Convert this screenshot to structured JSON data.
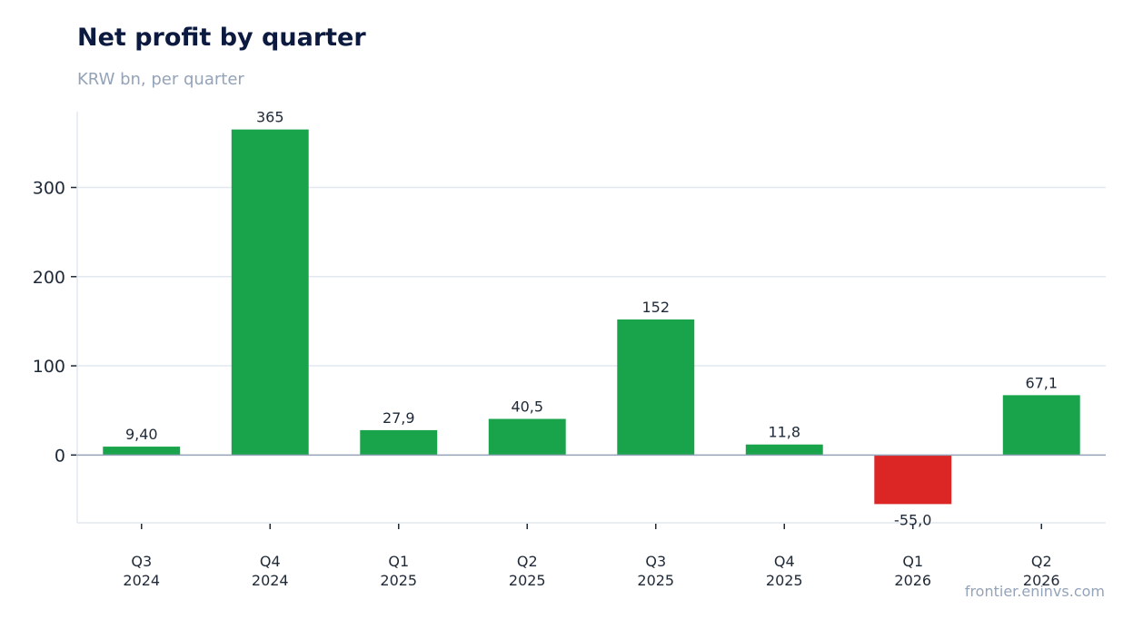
{
  "chart_data": {
    "type": "bar",
    "title": "Net profit by quarter",
    "subtitle": "KRW bn, per quarter",
    "categories": [
      [
        "Q3",
        "2024"
      ],
      [
        "Q4",
        "2024"
      ],
      [
        "Q1",
        "2025"
      ],
      [
        "Q2",
        "2025"
      ],
      [
        "Q3",
        "2025"
      ],
      [
        "Q4",
        "2025"
      ],
      [
        "Q1",
        "2026"
      ],
      [
        "Q2",
        "2026"
      ]
    ],
    "values": [
      9.4,
      365,
      27.9,
      40.5,
      152,
      11.8,
      -55.0,
      67.1
    ],
    "value_labels": [
      "9,40",
      "365",
      "27,9",
      "40,5",
      "152",
      "11,8",
      "-55,0",
      "67,1"
    ],
    "ylim": [
      -76,
      385
    ],
    "yticks": [
      0,
      100,
      200,
      300
    ],
    "ytick_labels": [
      "0",
      "100",
      "200",
      "300"
    ],
    "xlabel": "",
    "ylabel": "",
    "grid": true,
    "positive_color": "#19a34a",
    "negative_color": "#dc2626",
    "source": "frontier.eninvs.com"
  }
}
